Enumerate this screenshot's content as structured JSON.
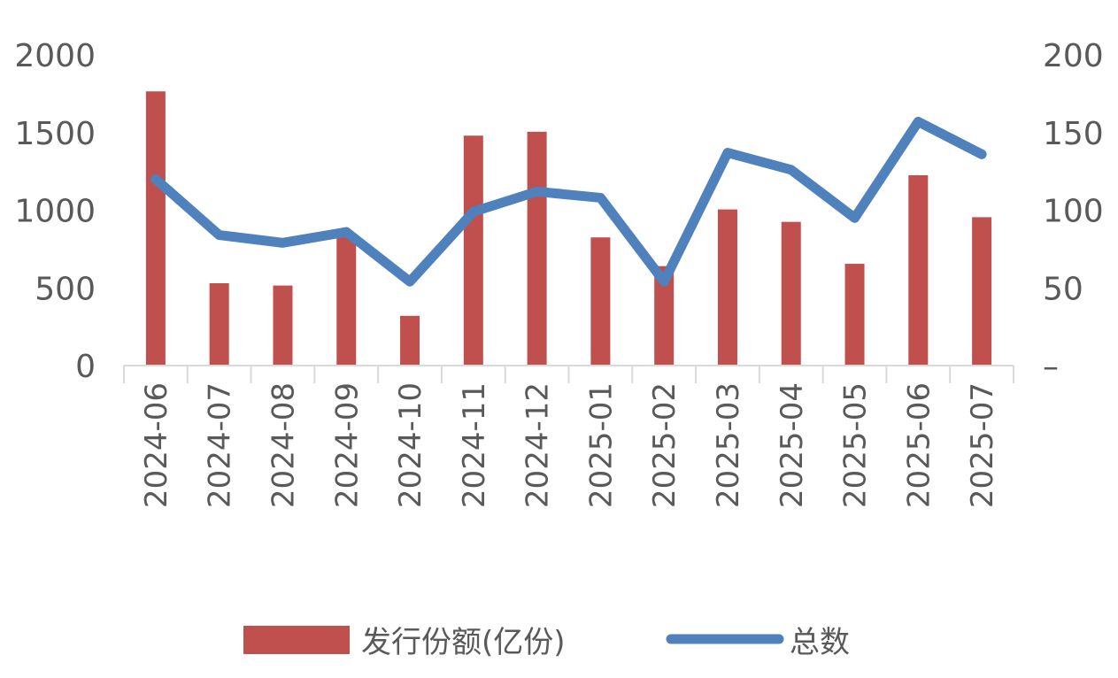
{
  "chart_data": {
    "type": "bar",
    "categories": [
      "2024-06",
      "2024-07",
      "2024-08",
      "2024-09",
      "2024-10",
      "2024-11",
      "2024-12",
      "2025-01",
      "2025-02",
      "2025-03",
      "2025-04",
      "2025-05",
      "2025-06",
      "2025-07"
    ],
    "series": [
      {
        "name": "发行份额(亿份)",
        "type": "bar",
        "axis": "left",
        "color": "#C0504D",
        "values": [
          1765,
          530,
          515,
          830,
          320,
          1480,
          1505,
          825,
          640,
          1005,
          925,
          655,
          1225,
          955
        ]
      },
      {
        "name": "总数",
        "type": "line",
        "axis": "right",
        "color": "#4F81BD",
        "values": [
          120,
          84,
          79,
          86,
          54,
          99,
          112,
          108,
          54,
          137,
          126,
          95,
          157,
          136
        ]
      }
    ],
    "left_axis": {
      "ylim": [
        0,
        2000
      ],
      "ticks": [
        "0",
        "500",
        "1000",
        "1500",
        "2000"
      ]
    },
    "right_axis": {
      "ylim": [
        0,
        200
      ],
      "ticks": [
        "–",
        "50",
        "100",
        "150",
        "200"
      ]
    },
    "legend": {
      "placement": "bottom",
      "entries": [
        "发行份额(亿份)",
        "总数"
      ]
    },
    "grid": false,
    "title": "",
    "xlabel": "",
    "ylabel": ""
  }
}
